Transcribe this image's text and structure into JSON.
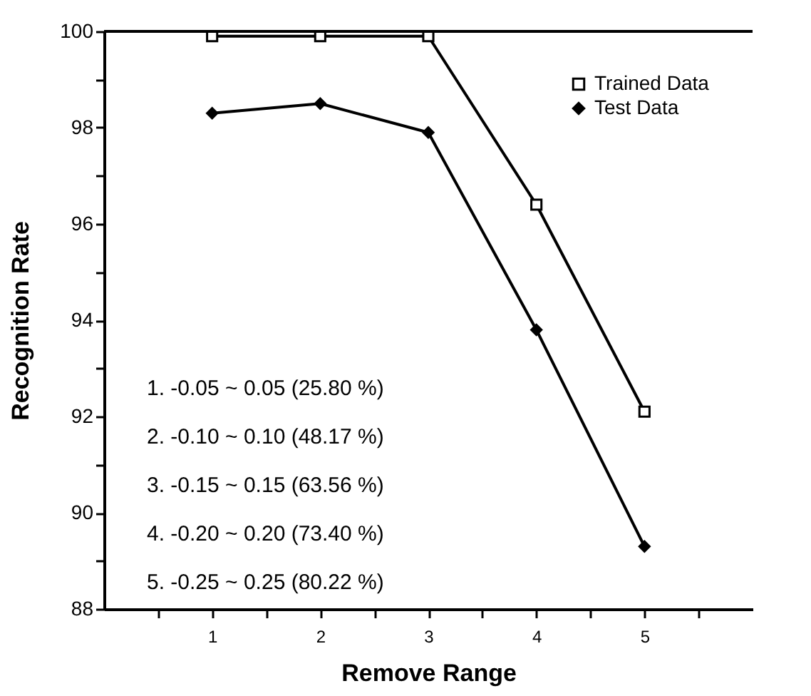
{
  "chart_data": {
    "type": "line",
    "xlabel": "Remove Range",
    "ylabel": "Recognition Rate",
    "x": [
      1,
      2,
      3,
      4,
      5
    ],
    "series": [
      {
        "name": "Trained Data",
        "color": "#000000",
        "marker": "square",
        "values": [
          99.9,
          99.9,
          99.9,
          96.4,
          92.1
        ]
      },
      {
        "name": "Test Data",
        "color": "#000000",
        "marker": "diamond",
        "values": [
          98.3,
          98.5,
          97.9,
          93.8,
          89.3
        ]
      }
    ],
    "xlim": [
      0,
      6
    ],
    "xticks": [
      {
        "value": 0.5,
        "label": null
      },
      1,
      {
        "value": 1.5,
        "label": null
      },
      2,
      {
        "value": 2.5,
        "label": null
      },
      3,
      {
        "value": 3.5,
        "label": null
      },
      4,
      {
        "value": 4.5,
        "label": null
      },
      5,
      {
        "value": 5.5,
        "label": null
      }
    ],
    "ylim": [
      88,
      100
    ],
    "yticks": [
      88,
      {
        "value": 89,
        "label": null
      },
      90,
      {
        "value": 91,
        "label": null
      },
      92,
      {
        "value": 93,
        "label": null
      },
      94,
      {
        "value": 95,
        "label": null
      },
      96,
      {
        "value": 97,
        "label": null
      },
      98,
      {
        "value": 99,
        "label": null
      },
      100
    ],
    "annotations": [
      "1. -0.05  ~  0.05  (25.80 %)",
      "2. -0.10  ~  0.10  (48.17 %)",
      "3. -0.15  ~  0.15  (63.56 %)",
      "4. -0.20  ~  0.20  (73.40 %)",
      "5. -0.25  ~  0.25  (80.22 %)"
    ],
    "legend": "top right",
    "grid": false,
    "line_style": "solid"
  }
}
